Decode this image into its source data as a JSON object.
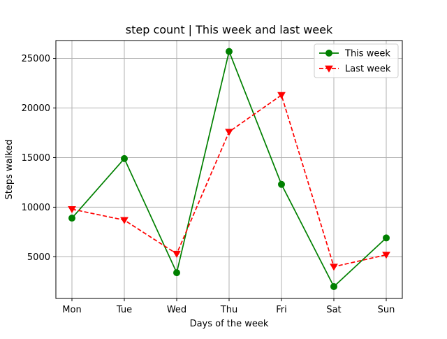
{
  "chart_data": {
    "type": "line",
    "title": "step count | This week and last week",
    "xlabel": "Days of the week",
    "ylabel": "Steps walked",
    "categories": [
      "Mon",
      "Tue",
      "Wed",
      "Thu",
      "Fri",
      "Sat",
      "Sun"
    ],
    "ylim": [
      800,
      26800
    ],
    "yticks": [
      5000,
      10000,
      15000,
      20000,
      25000
    ],
    "grid": true,
    "legend_position": "top-right",
    "series": [
      {
        "name": "This week",
        "values": [
          8900,
          14900,
          3400,
          25700,
          12300,
          2000,
          6900
        ],
        "color": "#008000",
        "line_style": "solid",
        "marker": "circle"
      },
      {
        "name": "Last week",
        "values": [
          9800,
          8700,
          5300,
          17600,
          21300,
          4000,
          5200
        ],
        "color": "#ff0000",
        "line_style": "dashed",
        "marker": "triangle-down"
      }
    ]
  }
}
